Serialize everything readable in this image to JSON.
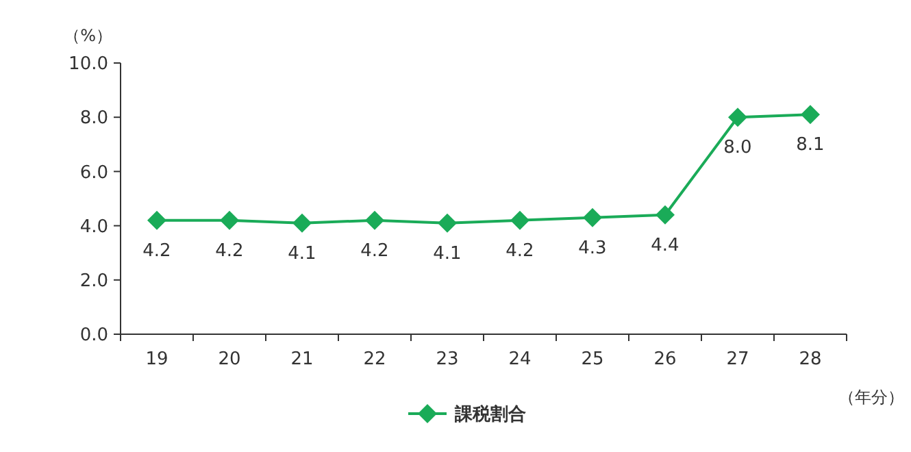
{
  "chart_data": {
    "type": "line",
    "ylabel": "（%）",
    "xlabel": "（年分）",
    "categories": [
      "19",
      "20",
      "21",
      "22",
      "23",
      "24",
      "25",
      "26",
      "27",
      "28"
    ],
    "series": [
      {
        "name": "課税割合",
        "color": "#1aab58",
        "values": [
          4.2,
          4.2,
          4.1,
          4.2,
          4.1,
          4.2,
          4.3,
          4.4,
          8.0,
          8.1
        ],
        "value_labels": [
          "4.2",
          "4.2",
          "4.1",
          "4.2",
          "4.1",
          "4.2",
          "4.3",
          "4.4",
          "8.0",
          "8.1"
        ]
      }
    ],
    "ylim": [
      0,
      10
    ],
    "yticks": [
      {
        "value": 0,
        "label": "0.0"
      },
      {
        "value": 2,
        "label": "2.0"
      },
      {
        "value": 4,
        "label": "4.0"
      },
      {
        "value": 6,
        "label": "6.0"
      },
      {
        "value": 8,
        "label": "8.0"
      },
      {
        "value": 10,
        "label": "10.0"
      }
    ],
    "marker": "diamond",
    "line_style": "solid",
    "legend": "bottom",
    "grid": false
  }
}
